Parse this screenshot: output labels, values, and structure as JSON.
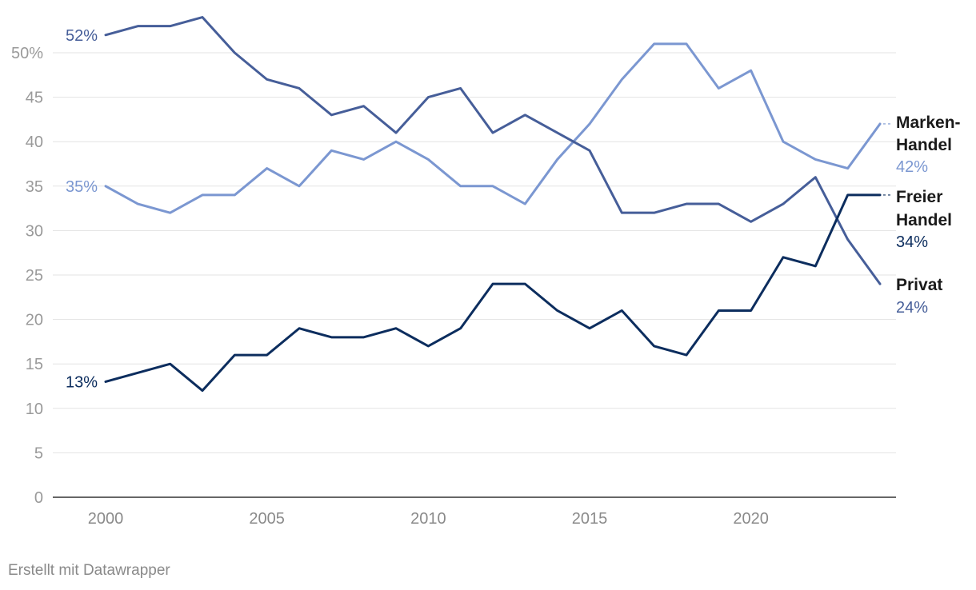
{
  "chart_data": {
    "type": "line",
    "x": [
      2000,
      2001,
      2002,
      2003,
      2004,
      2005,
      2006,
      2007,
      2008,
      2009,
      2010,
      2011,
      2012,
      2013,
      2014,
      2015,
      2016,
      2017,
      2018,
      2019,
      2020,
      2021,
      2022,
      2023,
      2024
    ],
    "xticks": [
      "2000",
      "2005",
      "2010",
      "2015",
      "2020"
    ],
    "yticks": [
      "0",
      "5",
      "10",
      "15",
      "20",
      "25",
      "30",
      "35",
      "40",
      "45",
      "50%"
    ],
    "ylim": [
      0,
      55
    ],
    "xlim": [
      1998.3,
      2024.5
    ],
    "grid": true,
    "series": [
      {
        "key": "marken",
        "name_line1": "Marken-",
        "name_line2": "Handel",
        "end_label": "42%",
        "start_label": "35%",
        "color": "#7b97d1",
        "values": [
          35,
          33,
          32,
          34,
          34,
          37,
          35,
          39,
          38,
          40,
          38,
          35,
          35,
          33,
          38,
          42,
          47,
          51,
          51,
          46,
          48,
          40,
          38,
          37,
          42
        ]
      },
      {
        "key": "privat",
        "name_line1": "Privat",
        "name_line2": "",
        "end_label": "24%",
        "start_label": "52%",
        "color": "#465e99",
        "values": [
          52,
          53,
          53,
          54,
          50,
          47,
          46,
          43,
          44,
          41,
          45,
          46,
          41,
          43,
          41,
          39,
          32,
          32,
          33,
          33,
          31,
          33,
          36,
          29,
          24
        ]
      },
      {
        "key": "freier",
        "name_line1": "Freier",
        "name_line2": "Handel",
        "end_label": "34%",
        "start_label": "13%",
        "color": "#0c2d5e",
        "values": [
          13,
          14,
          15,
          12,
          16,
          16,
          19,
          18,
          18,
          19,
          17,
          19,
          24,
          24,
          21,
          19,
          21,
          17,
          16,
          21,
          21,
          27,
          26,
          34,
          34
        ]
      }
    ]
  },
  "footer": {
    "credit": "Erstellt mit Datawrapper"
  }
}
